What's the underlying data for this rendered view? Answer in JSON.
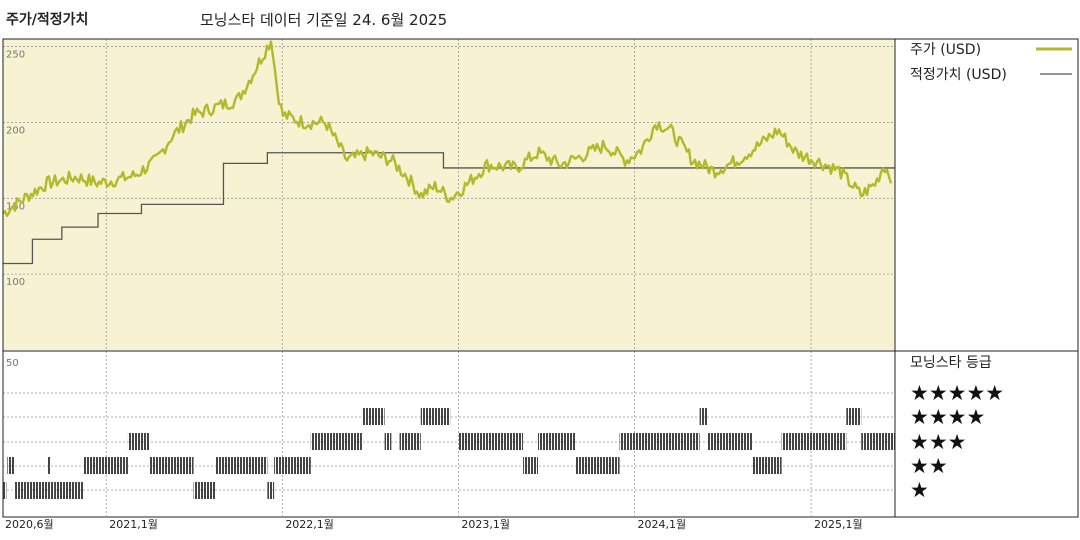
{
  "header": {
    "title": "주가/적정가치",
    "subtitle": "모닝스타 데이터 기준일 24. 6월 2025"
  },
  "colors": {
    "price": "#b3b92c",
    "fair_value": "#555555",
    "top_panel_bg": "#f7f3d2",
    "rating_bar": "#444444",
    "frame": "#222222",
    "gridline": "#999999"
  },
  "legend": {
    "price_label": "주가 (USD)",
    "fair_value_label": "적정가치 (USD)",
    "rating_title": "모닝스타 등급",
    "stars": [
      "★★★★★",
      "★★★★",
      "★★★",
      "★★",
      "★"
    ]
  },
  "chart_data": [
    {
      "type": "line",
      "title": "주가/적정가치",
      "x_ticks": [
        "2020,6월",
        "2021,1월",
        "2022,1월",
        "2023,1월",
        "2024,1월",
        "2025,1월"
      ],
      "y_ticks": [
        "100",
        "150",
        "200",
        "250"
      ],
      "ylim": [
        50,
        255
      ],
      "xlim": [
        "2020-06-01",
        "2025-06-24"
      ],
      "grid": true,
      "legend_position": "right",
      "series": [
        {
          "name": "주가 (USD)",
          "points": [
            [
              "2020-06-01",
              140
            ],
            [
              "2020-07-15",
              150
            ],
            [
              "2020-09-01",
              160
            ],
            [
              "2020-11-01",
              164
            ],
            [
              "2020-12-15",
              160
            ],
            [
              "2021-01-20",
              162
            ],
            [
              "2021-03-01",
              165
            ],
            [
              "2021-04-15",
              175
            ],
            [
              "2021-05-15",
              190
            ],
            [
              "2021-07-01",
              205
            ],
            [
              "2021-08-15",
              210
            ],
            [
              "2021-10-01",
              215
            ],
            [
              "2021-11-01",
              232
            ],
            [
              "2021-12-01",
              250
            ],
            [
              "2021-12-10",
              255
            ],
            [
              "2021-12-20",
              225
            ],
            [
              "2022-01-01",
              205
            ],
            [
              "2022-02-15",
              200
            ],
            [
              "2022-04-01",
              200
            ],
            [
              "2022-05-15",
              175
            ],
            [
              "2022-07-01",
              180
            ],
            [
              "2022-08-15",
              175
            ],
            [
              "2022-09-15",
              165
            ],
            [
              "2022-10-15",
              152
            ],
            [
              "2022-11-15",
              158
            ],
            [
              "2022-12-15",
              150
            ],
            [
              "2023-01-15",
              158
            ],
            [
              "2023-03-01",
              172
            ],
            [
              "2023-05-01",
              170
            ],
            [
              "2023-06-15",
              180
            ],
            [
              "2023-08-01",
              172
            ],
            [
              "2023-09-15",
              178
            ],
            [
              "2023-11-01",
              185
            ],
            [
              "2023-12-15",
              175
            ],
            [
              "2024-01-15",
              182
            ],
            [
              "2024-02-15",
              200
            ],
            [
              "2024-03-15",
              195
            ],
            [
              "2024-05-01",
              175
            ],
            [
              "2024-06-15",
              168
            ],
            [
              "2024-08-01",
              175
            ],
            [
              "2024-09-15",
              185
            ],
            [
              "2024-10-25",
              195
            ],
            [
              "2024-12-01",
              180
            ],
            [
              "2025-01-10",
              175
            ],
            [
              "2025-03-01",
              168
            ],
            [
              "2025-04-15",
              152
            ],
            [
              "2025-05-15",
              160
            ],
            [
              "2025-06-01",
              172
            ],
            [
              "2025-06-24",
              160
            ]
          ]
        },
        {
          "name": "적정가치 (USD)",
          "step": true,
          "points": [
            [
              "2020-06-01",
              107
            ],
            [
              "2020-08-01",
              123
            ],
            [
              "2020-10-01",
              131
            ],
            [
              "2020-12-15",
              140
            ],
            [
              "2021-03-15",
              146
            ],
            [
              "2021-09-01",
              173
            ],
            [
              "2021-12-01",
              180
            ],
            [
              "2022-12-01",
              180
            ],
            [
              "2022-12-01",
              170
            ],
            [
              "2025-06-24",
              170
            ]
          ]
        }
      ]
    },
    {
      "type": "timeline",
      "title": "모닝스타 등급",
      "y_ticks": [
        "50"
      ],
      "rows": [
        "5",
        "4",
        "3",
        "2",
        "1"
      ],
      "segments": [
        {
          "stars": 1,
          "from": "2020-06-01",
          "to": "2020-06-08"
        },
        {
          "stars": 2,
          "from": "2020-06-10",
          "to": "2020-06-24"
        },
        {
          "stars": 1,
          "from": "2020-06-26",
          "to": "2020-09-15"
        },
        {
          "stars": 2,
          "from": "2020-09-01",
          "to": "2020-09-08"
        },
        {
          "stars": 1,
          "from": "2020-09-15",
          "to": "2020-11-15"
        },
        {
          "stars": 2,
          "from": "2020-11-15",
          "to": "2021-02-15"
        },
        {
          "stars": 3,
          "from": "2021-02-15",
          "to": "2021-04-01"
        },
        {
          "stars": 2,
          "from": "2021-04-01",
          "to": "2021-07-01"
        },
        {
          "stars": 1,
          "from": "2021-07-01",
          "to": "2021-08-15"
        },
        {
          "stars": 2,
          "from": "2021-08-15",
          "to": "2021-12-01"
        },
        {
          "stars": 1,
          "from": "2021-12-01",
          "to": "2021-12-15"
        },
        {
          "stars": 2,
          "from": "2021-12-15",
          "to": "2022-03-01"
        },
        {
          "stars": 3,
          "from": "2022-03-01",
          "to": "2022-06-15"
        },
        {
          "stars": 4,
          "from": "2022-06-15",
          "to": "2022-08-01"
        },
        {
          "stars": 3,
          "from": "2022-08-01",
          "to": "2022-08-15"
        },
        {
          "stars": 3,
          "from": "2022-09-01",
          "to": "2022-10-15"
        },
        {
          "stars": 4,
          "from": "2022-10-15",
          "to": "2022-12-15"
        },
        {
          "stars": 3,
          "from": "2023-01-01",
          "to": "2023-05-15"
        },
        {
          "stars": 2,
          "from": "2023-05-15",
          "to": "2023-06-15"
        },
        {
          "stars": 3,
          "from": "2023-06-15",
          "to": "2023-09-01"
        },
        {
          "stars": 2,
          "from": "2023-09-01",
          "to": "2023-12-01"
        },
        {
          "stars": 3,
          "from": "2023-12-01",
          "to": "2024-05-15"
        },
        {
          "stars": 4,
          "from": "2024-05-15",
          "to": "2024-06-01"
        },
        {
          "stars": 3,
          "from": "2024-06-01",
          "to": "2024-09-01"
        },
        {
          "stars": 2,
          "from": "2024-09-01",
          "to": "2024-11-01"
        },
        {
          "stars": 3,
          "from": "2024-11-01",
          "to": "2025-03-15"
        },
        {
          "stars": 4,
          "from": "2025-03-15",
          "to": "2025-04-15"
        },
        {
          "stars": 3,
          "from": "2025-04-15",
          "to": "2025-06-24"
        }
      ]
    }
  ]
}
